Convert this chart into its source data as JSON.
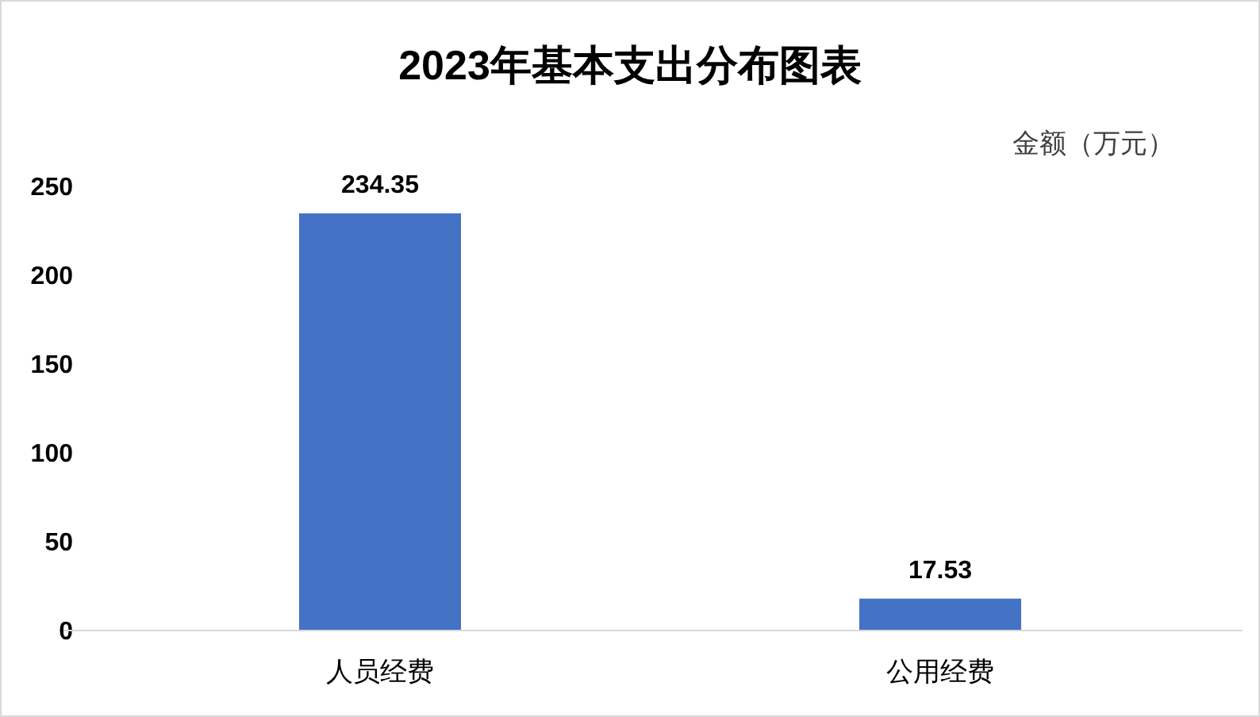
{
  "chart_data": {
    "type": "bar",
    "title": "2023年基本支出分布图表",
    "ylabel": "金额（万元）",
    "categories": [
      "人员经费",
      "公用经费"
    ],
    "values": [
      234.35,
      17.53
    ],
    "color": "#4472c4",
    "ylim": [
      0,
      250
    ],
    "yticks": [
      0,
      50,
      100,
      150,
      200,
      250
    ],
    "data_labels": true
  }
}
